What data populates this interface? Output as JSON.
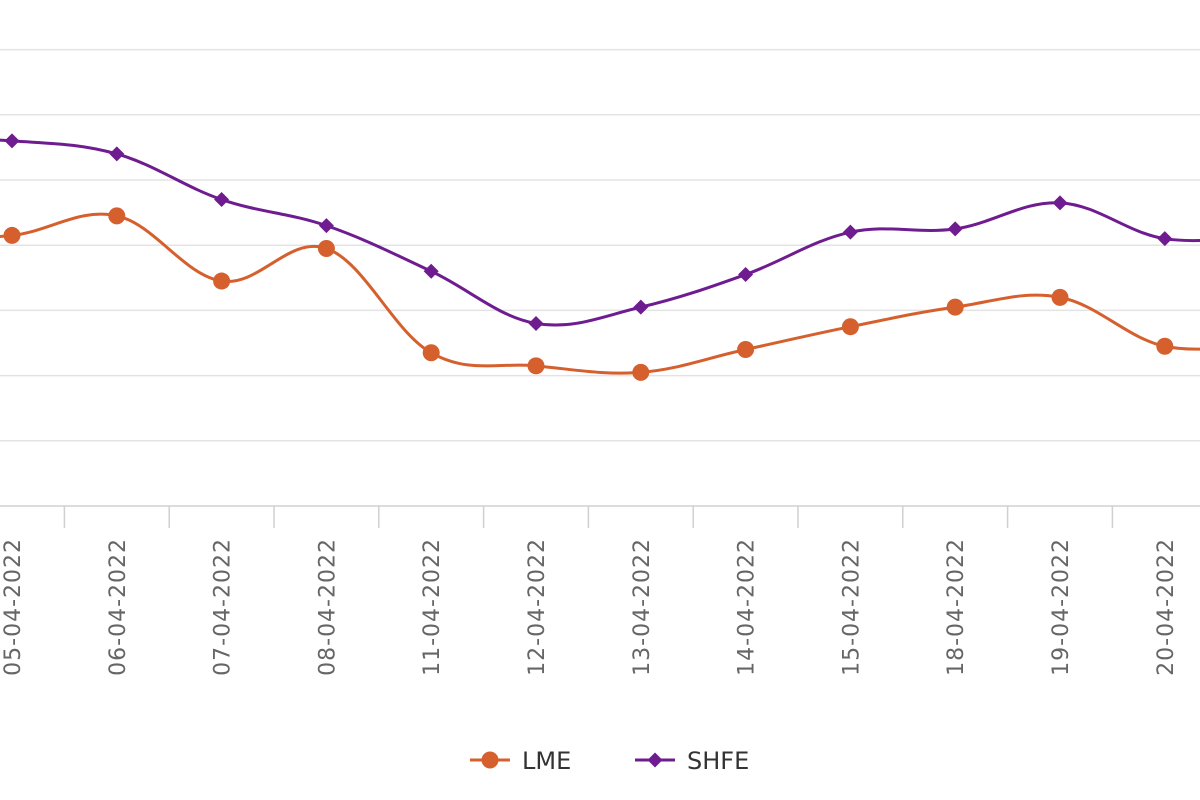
{
  "chart_data": {
    "type": "line",
    "title": "",
    "xlabel": "",
    "ylabel": "",
    "categories": [
      "05-04-2022",
      "06-04-2022",
      "07-04-2022",
      "08-04-2022",
      "11-04-2022",
      "12-04-2022",
      "13-04-2022",
      "14-04-2022",
      "15-04-2022",
      "18-04-2022",
      "19-04-2022",
      "20-04-2022"
    ],
    "ylim": [
      0,
      7
    ],
    "grid": true,
    "legend_position": "bottom-center",
    "series": [
      {
        "name": "LME",
        "color": "#d5602d",
        "marker": "circle",
        "values": [
          4.15,
          4.45,
          3.45,
          3.95,
          2.35,
          2.15,
          2.05,
          2.4,
          2.75,
          3.05,
          3.2,
          2.45
        ]
      },
      {
        "name": "SHFE",
        "color": "#6e1c8f",
        "marker": "diamond",
        "values": [
          5.6,
          5.4,
          4.7,
          4.3,
          3.6,
          2.8,
          3.05,
          3.55,
          4.2,
          4.25,
          4.65,
          4.1
        ]
      }
    ]
  }
}
